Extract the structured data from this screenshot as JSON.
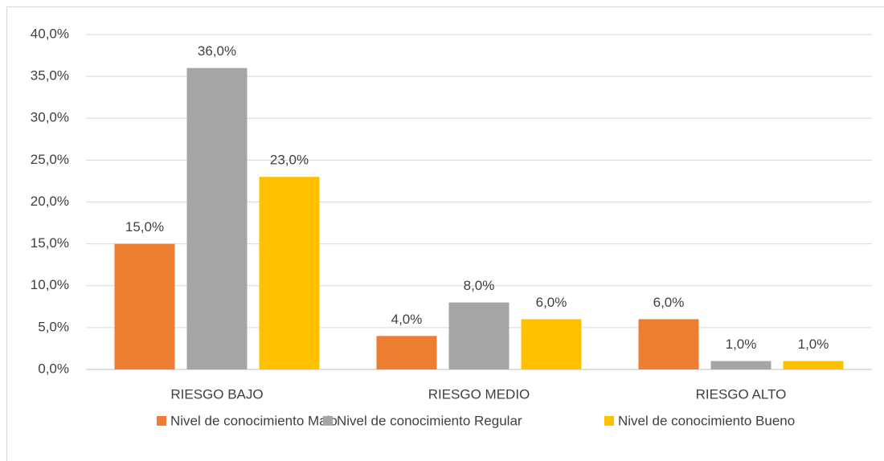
{
  "chart_data": {
    "type": "bar",
    "categories": [
      "RIESGO BAJO",
      "RIESGO MEDIO",
      "RIESGO ALTO"
    ],
    "series": [
      {
        "name": "Nivel de conocimiento Malo",
        "color": "#ED7D31",
        "values": [
          15,
          4,
          6
        ],
        "value_labels": [
          "15,0%",
          "4,0%",
          "6,0%"
        ]
      },
      {
        "name": "Nivel de conocimiento Regular",
        "color": "#A5A5A5",
        "values": [
          36,
          8,
          1
        ],
        "value_labels": [
          "36,0%",
          "8,0%",
          "1,0%"
        ]
      },
      {
        "name": "Nivel de conocimiento Bueno",
        "color": "#FFC000",
        "values": [
          23,
          6,
          1
        ],
        "value_labels": [
          "23,0%",
          "6,0%",
          "1,0%"
        ]
      }
    ],
    "ylim": [
      0,
      40
    ],
    "yticks": [
      {
        "value": 0,
        "label": "0,0%"
      },
      {
        "value": 5,
        "label": "5,0%"
      },
      {
        "value": 10,
        "label": "10,0%"
      },
      {
        "value": 15,
        "label": "15,0%"
      },
      {
        "value": 20,
        "label": "20,0%"
      },
      {
        "value": 25,
        "label": "25,0%"
      },
      {
        "value": 30,
        "label": "30,0%"
      },
      {
        "value": 35,
        "label": "35,0%"
      },
      {
        "value": 40,
        "label": "40,0%"
      }
    ],
    "grid": true,
    "legend": "bottom"
  }
}
